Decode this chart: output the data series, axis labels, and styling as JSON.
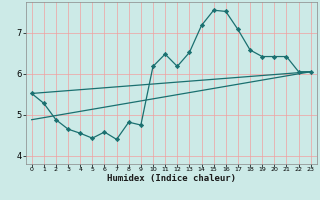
{
  "title": "",
  "xlabel": "Humidex (Indice chaleur)",
  "bg_color": "#cceae7",
  "grid_color": "#f5a0a0",
  "line_color": "#1a7070",
  "xlim": [
    -0.5,
    23.5
  ],
  "ylim": [
    3.8,
    7.75
  ],
  "yticks": [
    4,
    5,
    6,
    7
  ],
  "xticks": [
    0,
    1,
    2,
    3,
    4,
    5,
    6,
    7,
    8,
    9,
    10,
    11,
    12,
    13,
    14,
    15,
    16,
    17,
    18,
    19,
    20,
    21,
    22,
    23
  ],
  "line1_x": [
    0,
    1,
    2,
    3,
    4,
    5,
    6,
    7,
    8,
    9,
    10,
    11,
    12,
    13,
    14,
    15,
    16,
    17,
    18,
    19,
    20,
    21,
    22,
    23
  ],
  "line1_y": [
    5.52,
    5.28,
    4.88,
    4.65,
    4.55,
    4.43,
    4.58,
    4.4,
    4.82,
    4.75,
    6.18,
    6.48,
    6.18,
    6.52,
    7.18,
    7.55,
    7.52,
    7.08,
    6.58,
    6.42,
    6.42,
    6.42,
    6.05,
    6.05
  ],
  "line2_x": [
    0,
    23
  ],
  "line2_y": [
    5.52,
    6.05
  ],
  "line3_x": [
    0,
    23
  ],
  "line3_y": [
    4.88,
    6.05
  ]
}
